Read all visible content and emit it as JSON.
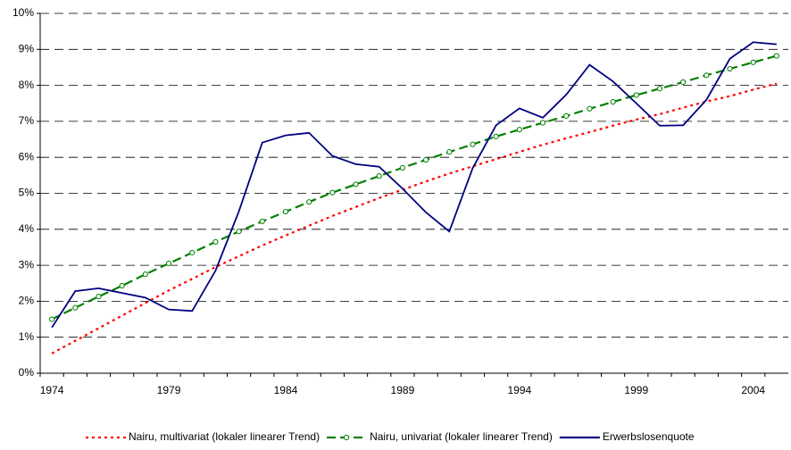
{
  "chart_data": {
    "type": "line",
    "x": [
      1974,
      1975,
      1976,
      1977,
      1978,
      1979,
      1980,
      1981,
      1982,
      1983,
      1984,
      1985,
      1986,
      1987,
      1988,
      1989,
      1990,
      1991,
      1992,
      1993,
      1994,
      1995,
      1996,
      1997,
      1998,
      1999,
      2000,
      2001,
      2002,
      2003,
      2004,
      2005
    ],
    "xlim": [
      1973.5,
      2005.5
    ],
    "xticks": [
      1974,
      1979,
      1984,
      1989,
      1994,
      1999,
      2004
    ],
    "ylim": [
      0,
      10
    ],
    "yticks": [
      {
        "value": 0,
        "label": "0%"
      },
      {
        "value": 1,
        "label": "1%"
      },
      {
        "value": 2,
        "label": "2%"
      },
      {
        "value": 3,
        "label": "3%"
      },
      {
        "value": 4,
        "label": "4%"
      },
      {
        "value": 5,
        "label": "5%"
      },
      {
        "value": 6,
        "label": "6%"
      },
      {
        "value": 7,
        "label": "7%"
      },
      {
        "value": 8,
        "label": "8%"
      },
      {
        "value": 9,
        "label": "9%"
      },
      {
        "value": 10,
        "label": "10%"
      }
    ],
    "grid": true,
    "legend": "bottom",
    "series": [
      {
        "name": "Nairu, multivariat (lokaler linearer Trend)",
        "color": "#ff0000",
        "dash": "dotted",
        "values": [
          0.55,
          0.9,
          1.25,
          1.6,
          1.95,
          2.3,
          2.62,
          2.95,
          3.25,
          3.55,
          3.83,
          4.1,
          4.37,
          4.62,
          4.87,
          5.1,
          5.33,
          5.55,
          5.75,
          5.95,
          6.15,
          6.35,
          6.53,
          6.7,
          6.88,
          7.05,
          7.2,
          7.38,
          7.55,
          7.7,
          7.88,
          8.05
        ]
      },
      {
        "name": "Nairu, univariat (lokaler linearer Trend)",
        "color": "#008000",
        "dash": "dashed",
        "marker": "circle",
        "values": [
          1.5,
          1.82,
          2.13,
          2.43,
          2.75,
          3.05,
          3.35,
          3.65,
          3.94,
          4.22,
          4.49,
          4.76,
          5.02,
          5.25,
          5.48,
          5.71,
          5.93,
          6.15,
          6.36,
          6.58,
          6.77,
          6.96,
          7.15,
          7.35,
          7.54,
          7.73,
          7.91,
          8.09,
          8.28,
          8.46,
          8.64,
          8.82
        ]
      },
      {
        "name": "Erwerbslosenquote",
        "color": "#000080",
        "dash": "solid",
        "values": [
          1.27,
          2.28,
          2.36,
          2.23,
          2.1,
          1.77,
          1.73,
          2.85,
          4.5,
          6.41,
          6.61,
          6.68,
          6.04,
          5.81,
          5.74,
          5.13,
          4.47,
          3.94,
          5.7,
          6.89,
          7.36,
          7.1,
          7.74,
          8.57,
          8.11,
          7.5,
          6.88,
          6.89,
          7.6,
          8.74,
          9.2,
          9.14
        ]
      }
    ]
  }
}
